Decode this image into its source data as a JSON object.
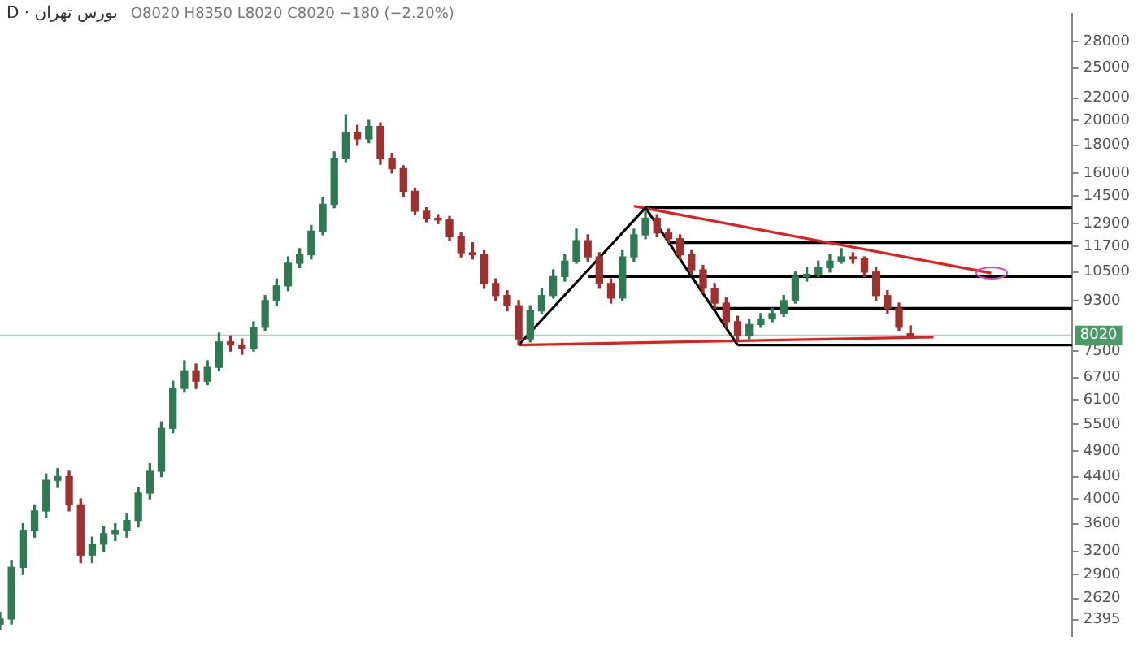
{
  "chart_data": {
    "type": "candlestick",
    "title": "D · بورس تهران",
    "subtitle": "O8020 H8350 L8020 C8020 −180 (−2.20%)",
    "categories": [
      null,
      null,
      null,
      null,
      null,
      null,
      null,
      null,
      null,
      null,
      null,
      null,
      null,
      null,
      null,
      null,
      null,
      null,
      null,
      null,
      null,
      null,
      null,
      null,
      null,
      null,
      null,
      null,
      null,
      null,
      null,
      null,
      null,
      null,
      null,
      null,
      null,
      null,
      null,
      null,
      null,
      null,
      null,
      null,
      null,
      null,
      null,
      null,
      null,
      null,
      null,
      null,
      null,
      null,
      null,
      null,
      null,
      null,
      null,
      null,
      null,
      null,
      null,
      null,
      null,
      null,
      null,
      null,
      null,
      null,
      null,
      null,
      null,
      null,
      null,
      null,
      null,
      null,
      null,
      null,
      null,
      null,
      null,
      null,
      null,
      null,
      null,
      null,
      null,
      null,
      null,
      null,
      null,
      null
    ],
    "ohlc": [
      [
        2350,
        2470,
        2300,
        2400
      ],
      [
        2400,
        3080,
        2350,
        2990
      ],
      [
        2990,
        3600,
        2900,
        3500
      ],
      [
        3500,
        3900,
        3400,
        3800
      ],
      [
        3800,
        4450,
        3700,
        4330
      ],
      [
        4330,
        4550,
        4200,
        4400
      ],
      [
        4400,
        4500,
        3800,
        3900
      ],
      [
        3900,
        4000,
        3050,
        3150
      ],
      [
        3150,
        3400,
        3050,
        3300
      ],
      [
        3300,
        3550,
        3200,
        3450
      ],
      [
        3450,
        3600,
        3350,
        3500
      ],
      [
        3500,
        3750,
        3400,
        3650
      ],
      [
        3650,
        4200,
        3550,
        4100
      ],
      [
        4100,
        4650,
        4000,
        4500
      ],
      [
        4500,
        5550,
        4400,
        5400
      ],
      [
        5400,
        6600,
        5300,
        6400
      ],
      [
        6400,
        7200,
        6300,
        6900
      ],
      [
        6900,
        7100,
        6400,
        6600
      ],
      [
        6600,
        7200,
        6500,
        7000
      ],
      [
        7000,
        8100,
        6900,
        7800
      ],
      [
        7800,
        8000,
        7500,
        7700
      ],
      [
        7700,
        7900,
        7400,
        7600
      ],
      [
        7600,
        8500,
        7500,
        8300
      ],
      [
        8300,
        9500,
        8200,
        9300
      ],
      [
        9300,
        10200,
        9100,
        9900
      ],
      [
        9900,
        11200,
        9700,
        10900
      ],
      [
        10900,
        11600,
        10700,
        11300
      ],
      [
        11300,
        12800,
        11100,
        12500
      ],
      [
        12500,
        14400,
        12300,
        14000
      ],
      [
        14000,
        17500,
        13800,
        17000
      ],
      [
        17000,
        20500,
        16800,
        19000
      ],
      [
        19000,
        19600,
        18000,
        18500
      ],
      [
        18500,
        20000,
        18200,
        19500
      ],
      [
        19500,
        19800,
        16600,
        17000
      ],
      [
        17000,
        17400,
        16000,
        16300
      ],
      [
        16300,
        16500,
        14500,
        14800
      ],
      [
        14800,
        15000,
        13400,
        13600
      ],
      [
        13600,
        13800,
        13000,
        13200
      ],
      [
        13200,
        13400,
        12900,
        13100
      ],
      [
        13100,
        13300,
        12000,
        12200
      ],
      [
        12200,
        12400,
        11200,
        11400
      ],
      [
        11400,
        11900,
        11100,
        11300
      ],
      [
        11300,
        11500,
        9800,
        10000
      ],
      [
        10000,
        10200,
        9300,
        9500
      ],
      [
        9500,
        9700,
        8900,
        9100
      ],
      [
        9100,
        9300,
        7700,
        7900
      ],
      [
        7900,
        9100,
        7800,
        8900
      ],
      [
        8900,
        9800,
        8800,
        9500
      ],
      [
        9500,
        10600,
        9400,
        10300
      ],
      [
        10300,
        11300,
        10100,
        11000
      ],
      [
        11000,
        12600,
        10900,
        12000
      ],
      [
        12000,
        12300,
        11000,
        11200
      ],
      [
        11200,
        11400,
        9800,
        10000
      ],
      [
        10000,
        10200,
        9200,
        9400
      ],
      [
        9400,
        11500,
        9300,
        11200
      ],
      [
        11200,
        12600,
        11000,
        12300
      ],
      [
        12300,
        13600,
        12100,
        13200
      ],
      [
        13200,
        13400,
        12200,
        12400
      ],
      [
        12400,
        12600,
        11900,
        12100
      ],
      [
        12100,
        12300,
        11100,
        11300
      ],
      [
        11300,
        11500,
        10400,
        10600
      ],
      [
        10600,
        10800,
        9600,
        9800
      ],
      [
        9800,
        10000,
        9000,
        9200
      ],
      [
        9200,
        9400,
        8300,
        8500
      ],
      [
        8500,
        8700,
        7800,
        8000
      ],
      [
        8000,
        8600,
        7900,
        8400
      ],
      [
        8400,
        8800,
        8300,
        8600
      ],
      [
        8600,
        9000,
        8500,
        8800
      ],
      [
        8800,
        9500,
        8700,
        9300
      ],
      [
        9300,
        10500,
        9200,
        10300
      ],
      [
        10300,
        10700,
        10100,
        10400
      ],
      [
        10400,
        11000,
        10300,
        10700
      ],
      [
        10700,
        11300,
        10500,
        11000
      ],
      [
        11000,
        11600,
        10900,
        11200
      ],
      [
        11200,
        11400,
        10900,
        11100
      ],
      [
        11100,
        11200,
        10300,
        10500
      ],
      [
        10500,
        10700,
        9300,
        9500
      ],
      [
        9500,
        9700,
        8800,
        9000
      ],
      [
        9000,
        9200,
        8200,
        8300
      ],
      [
        8020,
        8350,
        8020,
        8020
      ],
      null,
      null,
      null,
      null,
      null,
      null,
      null,
      null,
      null,
      null,
      null,
      null,
      null,
      null
    ],
    "colors": [
      "#2f7a55",
      "#2f7a55",
      "#2f7a55",
      "#2f7a55",
      "#2f7a55",
      "#2f7a55",
      "#a03030",
      "#a03030",
      "#2f7a55",
      "#2f7a55",
      "#2f7a55",
      "#2f7a55",
      "#2f7a55",
      "#2f7a55",
      "#2f7a55",
      "#2f7a55",
      "#2f7a55",
      "#a03030",
      "#2f7a55",
      "#2f7a55",
      "#a03030",
      "#a03030",
      "#2f7a55",
      "#2f7a55",
      "#2f7a55",
      "#2f7a55",
      "#2f7a55",
      "#2f7a55",
      "#2f7a55",
      "#2f7a55",
      "#2f7a55",
      "#a03030",
      "#2f7a55",
      "#a03030",
      "#a03030",
      "#a03030",
      "#a03030",
      "#a03030",
      "#a03030",
      "#a03030",
      "#a03030",
      "#a03030",
      "#a03030",
      "#a03030",
      "#a03030",
      "#a03030",
      "#2f7a55",
      "#2f7a55",
      "#2f7a55",
      "#2f7a55",
      "#2f7a55",
      "#a03030",
      "#a03030",
      "#a03030",
      "#2f7a55",
      "#2f7a55",
      "#2f7a55",
      "#a03030",
      "#a03030",
      "#a03030",
      "#a03030",
      "#a03030",
      "#a03030",
      "#a03030",
      "#a03030",
      "#2f7a55",
      "#2f7a55",
      "#2f7a55",
      "#2f7a55",
      "#2f7a55",
      "#2f7a55",
      "#2f7a55",
      "#2f7a55",
      "#2f7a55",
      "#a03030",
      "#a03030",
      "#a03030",
      "#a03030",
      "#a03030",
      "#a03030",
      null,
      null,
      null,
      null,
      null,
      null,
      null,
      null,
      null,
      null,
      null,
      null,
      null,
      null
    ],
    "series": [
      {
        "type": "line",
        "color": "#000000",
        "values": [
          null,
          null,
          null,
          null,
          null,
          null,
          null,
          null,
          null,
          null,
          null,
          null,
          null,
          null,
          null,
          null,
          null,
          null,
          null,
          null,
          null,
          null,
          null,
          null,
          null,
          null,
          null,
          null,
          null,
          null,
          null,
          null,
          null,
          null,
          null,
          null,
          null,
          null,
          null,
          null,
          null,
          null,
          null,
          null,
          null,
          7700,
          null,
          null,
          null,
          null,
          null,
          null,
          null,
          null,
          null,
          null,
          13800,
          null,
          null,
          null,
          null,
          null,
          null,
          null,
          7700,
          null,
          null,
          null,
          null,
          null,
          null,
          null,
          null,
          null,
          null,
          null,
          null,
          null,
          null,
          null,
          null,
          null,
          null,
          null,
          null,
          null,
          null,
          null,
          null,
          null,
          null,
          null,
          null,
          null
        ]
      },
      {
        "type": "line",
        "color": "#e02020",
        "values": [
          null,
          null,
          null,
          null,
          null,
          null,
          null,
          null,
          null,
          null,
          null,
          null,
          null,
          null,
          null,
          null,
          null,
          null,
          null,
          null,
          null,
          null,
          null,
          null,
          null,
          null,
          null,
          null,
          null,
          null,
          null,
          null,
          null,
          null,
          null,
          null,
          null,
          null,
          null,
          null,
          null,
          null,
          null,
          null,
          null,
          7700,
          null,
          null,
          null,
          null,
          null,
          null,
          null,
          null,
          null,
          null,
          null,
          null,
          null,
          null,
          null,
          null,
          null,
          null,
          null,
          null,
          null,
          null,
          null,
          null,
          null,
          null,
          null,
          null,
          null,
          null,
          null,
          null,
          null,
          null,
          null,
          7960,
          null,
          null,
          null,
          null,
          null,
          null,
          null,
          null,
          null,
          null,
          null,
          null
        ]
      },
      {
        "type": "line",
        "color": "#e02020",
        "values": [
          null,
          null,
          null,
          null,
          null,
          null,
          null,
          null,
          null,
          null,
          null,
          null,
          null,
          null,
          null,
          null,
          null,
          null,
          null,
          null,
          null,
          null,
          null,
          null,
          null,
          null,
          null,
          null,
          null,
          null,
          null,
          null,
          null,
          null,
          null,
          null,
          null,
          null,
          null,
          null,
          null,
          null,
          null,
          null,
          null,
          null,
          null,
          null,
          null,
          null,
          null,
          null,
          null,
          null,
          null,
          13900,
          null,
          null,
          null,
          null,
          null,
          null,
          null,
          null,
          null,
          null,
          null,
          null,
          null,
          null,
          null,
          null,
          null,
          null,
          null,
          null,
          null,
          null,
          null,
          null,
          null,
          null,
          null,
          null,
          null,
          null,
          10450,
          null,
          null,
          null,
          null,
          null,
          null,
          null
        ]
      },
      {
        "type": "line",
        "color": "#000000",
        "values": [
          null,
          null,
          null,
          null,
          null,
          null,
          null,
          null,
          null,
          null,
          null,
          null,
          null,
          null,
          null,
          null,
          null,
          null,
          null,
          null,
          null,
          null,
          null,
          null,
          null,
          null,
          null,
          null,
          null,
          null,
          null,
          null,
          null,
          null,
          null,
          null,
          null,
          null,
          null,
          null,
          null,
          null,
          null,
          null,
          null,
          null,
          null,
          null,
          null,
          null,
          null,
          null,
          null,
          null,
          null,
          null,
          13800,
          null,
          null,
          null,
          null,
          null,
          null,
          null,
          null,
          null,
          null,
          null,
          null,
          null,
          null,
          null,
          null,
          null,
          null,
          null,
          null,
          null,
          null,
          null,
          null,
          null,
          null,
          null,
          null,
          null,
          null,
          null,
          null,
          null,
          null,
          null,
          null,
          13800
        ]
      },
      {
        "type": "line",
        "color": "#000000",
        "values": [
          null,
          null,
          null,
          null,
          null,
          null,
          null,
          null,
          null,
          null,
          null,
          null,
          null,
          null,
          null,
          null,
          null,
          null,
          null,
          null,
          null,
          null,
          null,
          null,
          null,
          null,
          null,
          null,
          null,
          null,
          null,
          null,
          null,
          null,
          null,
          null,
          null,
          null,
          null,
          null,
          null,
          null,
          null,
          null,
          null,
          null,
          null,
          null,
          null,
          null,
          null,
          null,
          null,
          null,
          null,
          null,
          null,
          null,
          11900,
          null,
          null,
          null,
          null,
          null,
          null,
          null,
          null,
          null,
          null,
          null,
          null,
          null,
          null,
          null,
          null,
          null,
          null,
          null,
          null,
          null,
          null,
          null,
          null,
          null,
          null,
          null,
          null,
          null,
          null,
          null,
          null,
          null,
          null,
          11900
        ]
      },
      {
        "type": "line",
        "color": "#000000",
        "values": [
          null,
          null,
          null,
          null,
          null,
          null,
          null,
          null,
          null,
          null,
          null,
          null,
          null,
          null,
          null,
          null,
          null,
          null,
          null,
          null,
          null,
          null,
          null,
          null,
          null,
          null,
          null,
          null,
          null,
          null,
          null,
          null,
          null,
          null,
          null,
          null,
          null,
          null,
          null,
          null,
          null,
          null,
          null,
          null,
          null,
          null,
          null,
          null,
          null,
          null,
          null,
          10300,
          null,
          null,
          null,
          null,
          null,
          null,
          null,
          null,
          null,
          null,
          null,
          null,
          null,
          null,
          null,
          null,
          null,
          null,
          null,
          null,
          null,
          null,
          null,
          null,
          null,
          null,
          null,
          null,
          null,
          null,
          null,
          null,
          null,
          null,
          null,
          null,
          null,
          null,
          null,
          null,
          null,
          10300
        ]
      },
      {
        "type": "line",
        "color": "#000000",
        "values": [
          null,
          null,
          null,
          null,
          null,
          null,
          null,
          null,
          null,
          null,
          null,
          null,
          null,
          null,
          null,
          null,
          null,
          null,
          null,
          null,
          null,
          null,
          null,
          null,
          null,
          null,
          null,
          null,
          null,
          null,
          null,
          null,
          null,
          null,
          null,
          null,
          null,
          null,
          null,
          null,
          null,
          null,
          null,
          null,
          null,
          null,
          null,
          null,
          null,
          null,
          null,
          null,
          null,
          null,
          null,
          null,
          null,
          null,
          null,
          null,
          null,
          null,
          9000,
          null,
          null,
          null,
          null,
          null,
          null,
          null,
          null,
          null,
          null,
          null,
          null,
          null,
          null,
          null,
          null,
          null,
          null,
          null,
          null,
          null,
          null,
          null,
          null,
          null,
          null,
          null,
          null,
          null,
          null,
          9000
        ]
      },
      {
        "type": "line",
        "color": "#000000",
        "values": [
          null,
          null,
          null,
          null,
          null,
          null,
          null,
          null,
          null,
          null,
          null,
          null,
          null,
          null,
          null,
          null,
          null,
          null,
          null,
          null,
          null,
          null,
          null,
          null,
          null,
          null,
          null,
          null,
          null,
          null,
          null,
          null,
          null,
          null,
          null,
          null,
          null,
          null,
          null,
          null,
          null,
          null,
          null,
          null,
          null,
          null,
          null,
          null,
          null,
          null,
          null,
          null,
          null,
          null,
          null,
          null,
          null,
          null,
          null,
          null,
          null,
          null,
          null,
          null,
          7700,
          null,
          null,
          null,
          null,
          null,
          null,
          null,
          null,
          null,
          null,
          null,
          null,
          null,
          null,
          null,
          null,
          null,
          null,
          null,
          null,
          null,
          null,
          null,
          null,
          null,
          null,
          null,
          null,
          7700
        ]
      }
    ],
    "ref_lines": [
      {
        "axis": "y",
        "value": 8020,
        "label": "8020",
        "color": "#4c9a6a"
      }
    ],
    "log": true,
    "ylim": [
      2230,
      31500
    ],
    "yticks": [
      2395,
      2620,
      2900,
      3200,
      3600,
      4000,
      4400,
      4900,
      5500,
      6100,
      6700,
      7500,
      9300,
      10500,
      11700,
      12900,
      14500,
      16000,
      18000,
      20000,
      22000,
      25000,
      28000
    ],
    "grid": false,
    "legend": false,
    "tick_labels": "y"
  }
}
